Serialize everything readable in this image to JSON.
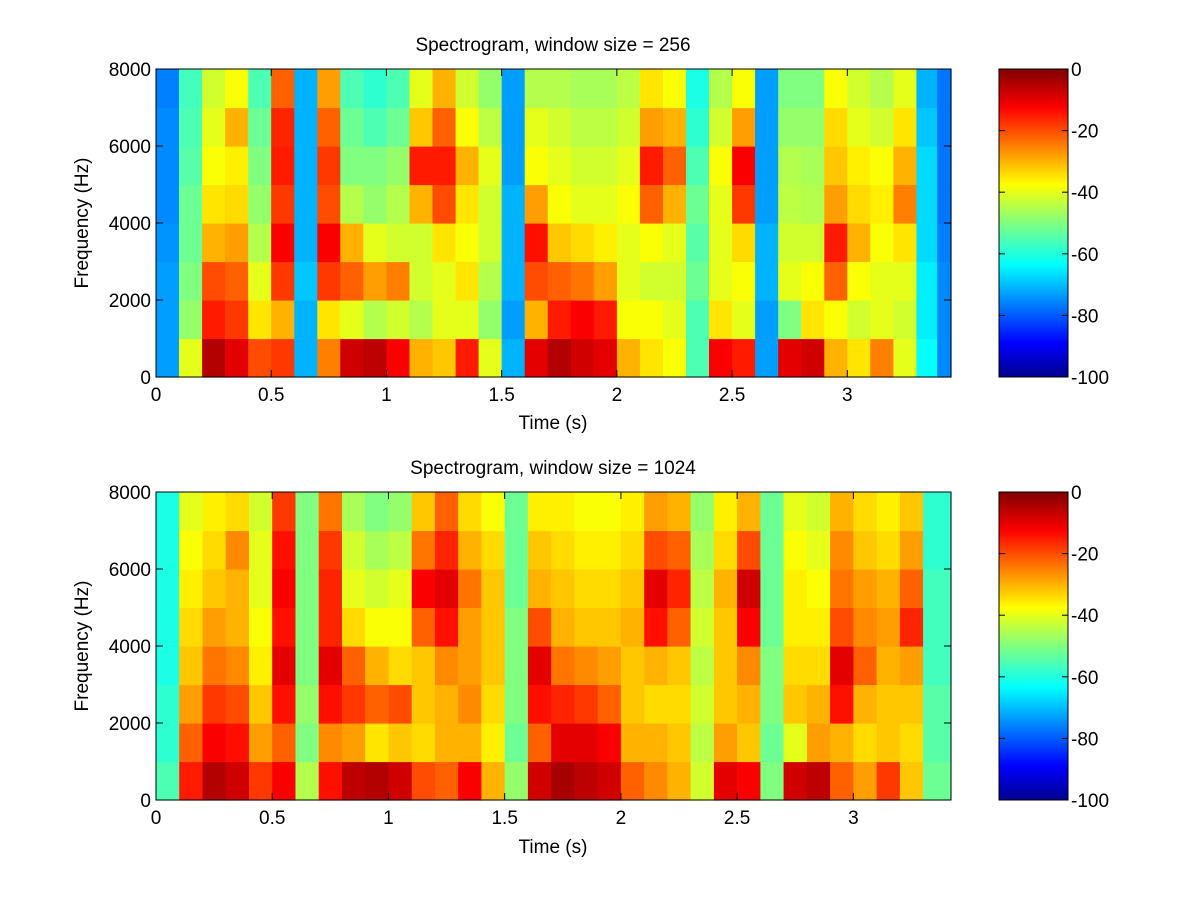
{
  "chart_data": [
    {
      "type": "heatmap",
      "title": "Spectrogram, window size = 256",
      "xlabel": "Time (s)",
      "ylabel": "Frequency (Hz)",
      "xlim": [
        0,
        3.45
      ],
      "ylim": [
        0,
        8000
      ],
      "xticks": [
        0,
        0.5,
        1,
        1.5,
        2,
        2.5,
        3
      ],
      "xtick_labels": [
        "0",
        "0.5",
        "1",
        "1.5",
        "2",
        "2.5",
        "3"
      ],
      "yticks": [
        0,
        2000,
        4000,
        6000,
        8000
      ],
      "ytick_labels": [
        "0",
        "2000",
        "4000",
        "6000",
        "8000"
      ],
      "colorbar": {
        "range": [
          -100,
          0
        ],
        "ticks": [
          0,
          -20,
          -40,
          -60,
          -80,
          -100
        ],
        "tick_labels": [
          "0",
          "-20",
          "-40",
          "-60",
          "-80",
          "-100"
        ],
        "colormap": "jet"
      },
      "time_bins": [
        0.05,
        0.15,
        0.25,
        0.35,
        0.45,
        0.55,
        0.65,
        0.75,
        0.85,
        0.95,
        1.05,
        1.15,
        1.25,
        1.35,
        1.45,
        1.55,
        1.65,
        1.75,
        1.85,
        1.95,
        2.05,
        2.15,
        2.25,
        2.35,
        2.45,
        2.55,
        2.65,
        2.75,
        2.85,
        2.95,
        3.05,
        3.15,
        3.25,
        3.35,
        3.43
      ],
      "freq_bins": [
        500,
        1500,
        2500,
        3500,
        4500,
        5500,
        6500,
        7500
      ],
      "values_db": [
        [
          -72,
          -72,
          -72,
          -73,
          -74,
          -74,
          -74,
          -75
        ],
        [
          -40,
          -48,
          -50,
          -52,
          -52,
          -54,
          -55,
          -56
        ],
        [
          -5,
          -15,
          -20,
          -30,
          -35,
          -38,
          -40,
          -42
        ],
        [
          -10,
          -18,
          -22,
          -28,
          -34,
          -36,
          -30,
          -38
        ],
        [
          -20,
          -35,
          -40,
          -45,
          -48,
          -50,
          -52,
          -55
        ],
        [
          -18,
          -30,
          -18,
          -12,
          -18,
          -15,
          -16,
          -22
        ],
        [
          -70,
          -70,
          -68,
          -70,
          -70,
          -70,
          -70,
          -70
        ],
        [
          -25,
          -35,
          -18,
          -12,
          -20,
          -18,
          -22,
          -28
        ],
        [
          -8,
          -40,
          -22,
          -30,
          -45,
          -50,
          -52,
          -55
        ],
        [
          -6,
          -45,
          -28,
          -40,
          -48,
          -50,
          -55,
          -58
        ],
        [
          -12,
          -42,
          -25,
          -42,
          -45,
          -48,
          -52,
          -55
        ],
        [
          -30,
          -45,
          -42,
          -42,
          -30,
          -15,
          -32,
          -40
        ],
        [
          -32,
          -40,
          -40,
          -35,
          -20,
          -15,
          -22,
          -30
        ],
        [
          -15,
          -40,
          -35,
          -38,
          -35,
          -30,
          -38,
          -42
        ],
        [
          -40,
          -48,
          -45,
          -42,
          -42,
          -40,
          -44,
          -48
        ],
        [
          -70,
          -72,
          -70,
          -70,
          -70,
          -72,
          -72,
          -72
        ],
        [
          -10,
          -30,
          -20,
          -14,
          -28,
          -38,
          -40,
          -45
        ],
        [
          -5,
          -15,
          -22,
          -32,
          -38,
          -40,
          -42,
          -45
        ],
        [
          -8,
          -12,
          -24,
          -34,
          -40,
          -42,
          -44,
          -46
        ],
        [
          -10,
          -15,
          -28,
          -36,
          -40,
          -42,
          -44,
          -46
        ],
        [
          -30,
          -38,
          -40,
          -40,
          -38,
          -40,
          -42,
          -44
        ],
        [
          -35,
          -38,
          -42,
          -38,
          -22,
          -15,
          -28,
          -35
        ],
        [
          -38,
          -40,
          -42,
          -40,
          -30,
          -22,
          -30,
          -38
        ],
        [
          -55,
          -55,
          -52,
          -54,
          -52,
          -55,
          -58,
          -60
        ],
        [
          -12,
          -35,
          -40,
          -40,
          -40,
          -38,
          -42,
          -45
        ],
        [
          -15,
          -40,
          -38,
          -34,
          -18,
          -12,
          -28,
          -38
        ],
        [
          -72,
          -72,
          -70,
          -70,
          -72,
          -72,
          -72,
          -72
        ],
        [
          -10,
          -50,
          -40,
          -42,
          -44,
          -45,
          -48,
          -50
        ],
        [
          -8,
          -35,
          -38,
          -42,
          -45,
          -46,
          -48,
          -50
        ],
        [
          -30,
          -38,
          -22,
          -15,
          -28,
          -32,
          -34,
          -38
        ],
        [
          -35,
          -42,
          -38,
          -30,
          -34,
          -36,
          -40,
          -42
        ],
        [
          -25,
          -40,
          -40,
          -38,
          -36,
          -38,
          -42,
          -45
        ],
        [
          -40,
          -42,
          -40,
          -35,
          -25,
          -30,
          -35,
          -40
        ],
        [
          -62,
          -64,
          -64,
          -66,
          -66,
          -66,
          -68,
          -70
        ],
        [
          -74,
          -74,
          -74,
          -75,
          -76,
          -76,
          -76,
          -76
        ]
      ]
    },
    {
      "type": "heatmap",
      "title": "Spectrogram, window size = 1024",
      "xlabel": "Time (s)",
      "ylabel": "Frequency (Hz)",
      "xlim": [
        0,
        3.42
      ],
      "ylim": [
        0,
        8000
      ],
      "xticks": [
        0,
        0.5,
        1,
        1.5,
        2,
        2.5,
        3
      ],
      "xtick_labels": [
        "0",
        "0.5",
        "1",
        "1.5",
        "2",
        "2.5",
        "3"
      ],
      "yticks": [
        0,
        2000,
        4000,
        6000,
        8000
      ],
      "ytick_labels": [
        "0",
        "2000",
        "4000",
        "6000",
        "8000"
      ],
      "colorbar": {
        "range": [
          -100,
          0
        ],
        "ticks": [
          0,
          -20,
          -40,
          -60,
          -80,
          -100
        ],
        "tick_labels": [
          "0",
          "-20",
          "-40",
          "-60",
          "-80",
          "-100"
        ],
        "colormap": "jet"
      },
      "time_bins": [
        0.05,
        0.15,
        0.25,
        0.35,
        0.45,
        0.55,
        0.65,
        0.75,
        0.85,
        0.95,
        1.05,
        1.15,
        1.25,
        1.35,
        1.45,
        1.55,
        1.65,
        1.75,
        1.85,
        1.95,
        2.05,
        2.15,
        2.25,
        2.35,
        2.45,
        2.55,
        2.65,
        2.75,
        2.85,
        2.95,
        3.05,
        3.15,
        3.25,
        3.35
      ],
      "freq_bins": [
        500,
        1500,
        2500,
        3500,
        4500,
        5500,
        6500,
        7500
      ],
      "values_db": [
        [
          -55,
          -58,
          -58,
          -60,
          -60,
          -60,
          -60,
          -60
        ],
        [
          -15,
          -22,
          -28,
          -32,
          -34,
          -36,
          -38,
          -40
        ],
        [
          -5,
          -12,
          -18,
          -24,
          -28,
          -32,
          -34,
          -36
        ],
        [
          -8,
          -14,
          -20,
          -26,
          -30,
          -30,
          -26,
          -34
        ],
        [
          -18,
          -28,
          -32,
          -36,
          -38,
          -40,
          -40,
          -42
        ],
        [
          -12,
          -22,
          -14,
          -10,
          -14,
          -12,
          -14,
          -18
        ],
        [
          -45,
          -50,
          -48,
          -50,
          -50,
          -50,
          -50,
          -50
        ],
        [
          -14,
          -26,
          -14,
          -10,
          -16,
          -16,
          -18,
          -24
        ],
        [
          -6,
          -28,
          -18,
          -22,
          -34,
          -40,
          -42,
          -46
        ],
        [
          -5,
          -35,
          -22,
          -30,
          -38,
          -42,
          -46,
          -50
        ],
        [
          -8,
          -32,
          -20,
          -34,
          -38,
          -40,
          -44,
          -48
        ],
        [
          -20,
          -34,
          -32,
          -32,
          -22,
          -12,
          -24,
          -32
        ],
        [
          -22,
          -30,
          -30,
          -26,
          -14,
          -10,
          -16,
          -22
        ],
        [
          -12,
          -30,
          -26,
          -28,
          -28,
          -24,
          -30,
          -34
        ],
        [
          -30,
          -36,
          -34,
          -32,
          -32,
          -32,
          -34,
          -38
        ],
        [
          -48,
          -52,
          -50,
          -50,
          -50,
          -52,
          -52,
          -52
        ],
        [
          -8,
          -22,
          -14,
          -10,
          -20,
          -30,
          -32,
          -36
        ],
        [
          -4,
          -10,
          -16,
          -24,
          -30,
          -32,
          -34,
          -36
        ],
        [
          -6,
          -10,
          -18,
          -26,
          -32,
          -34,
          -36,
          -38
        ],
        [
          -8,
          -12,
          -22,
          -28,
          -32,
          -34,
          -36,
          -38
        ],
        [
          -22,
          -30,
          -32,
          -32,
          -30,
          -32,
          -34,
          -36
        ],
        [
          -26,
          -30,
          -34,
          -30,
          -14,
          -10,
          -20,
          -28
        ],
        [
          -30,
          -32,
          -34,
          -32,
          -22,
          -16,
          -22,
          -30
        ],
        [
          -42,
          -44,
          -42,
          -44,
          -42,
          -44,
          -46,
          -48
        ],
        [
          -10,
          -28,
          -32,
          -32,
          -32,
          -30,
          -34,
          -36
        ],
        [
          -12,
          -32,
          -30,
          -26,
          -12,
          -8,
          -20,
          -30
        ],
        [
          -50,
          -52,
          -50,
          -50,
          -52,
          -52,
          -52,
          -52
        ],
        [
          -8,
          -40,
          -32,
          -34,
          -36,
          -36,
          -38,
          -40
        ],
        [
          -6,
          -28,
          -30,
          -34,
          -36,
          -38,
          -40,
          -42
        ],
        [
          -22,
          -30,
          -14,
          -10,
          -20,
          -24,
          -26,
          -30
        ],
        [
          -28,
          -34,
          -30,
          -22,
          -26,
          -28,
          -32,
          -34
        ],
        [
          -18,
          -32,
          -32,
          -30,
          -28,
          -30,
          -34,
          -36
        ],
        [
          -32,
          -34,
          -32,
          -28,
          -16,
          -22,
          -28,
          -32
        ],
        [
          -52,
          -54,
          -54,
          -56,
          -56,
          -56,
          -58,
          -58
        ]
      ]
    }
  ]
}
